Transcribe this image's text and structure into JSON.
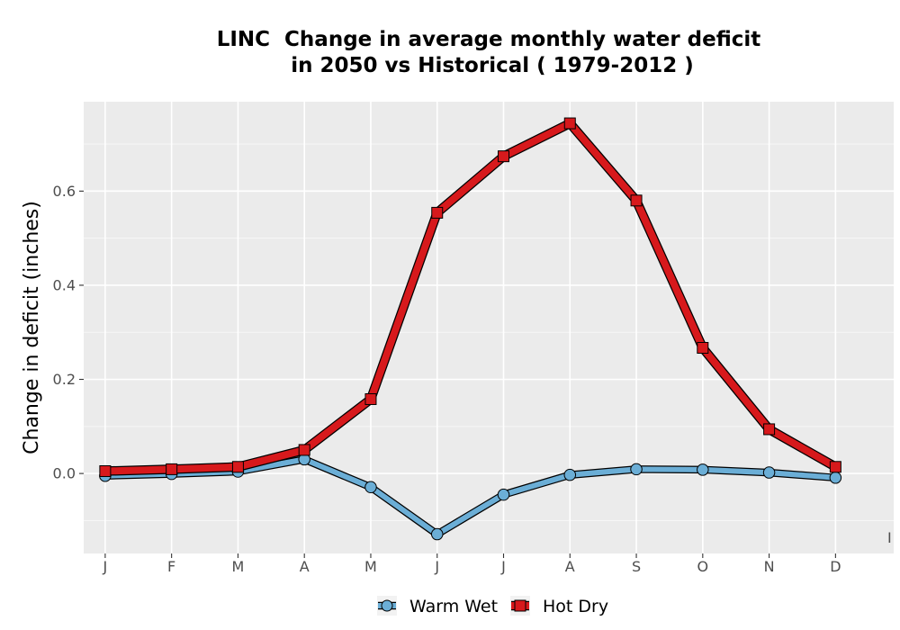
{
  "chart_data": {
    "type": "line",
    "title": "LINC  Change in average monthly water deficit\n in 2050 vs Historical ( 1979-2012 )",
    "xlabel": "",
    "ylabel": "Change in deficit (inches)",
    "categories": [
      "J",
      "F",
      "M",
      "A",
      "M",
      "J",
      "J",
      "A",
      "S",
      "O",
      "N",
      "D"
    ],
    "yticks": [
      0.0,
      0.2,
      0.4,
      0.6
    ],
    "ytick_labels": [
      "0.0",
      "0.2",
      "0.4",
      "0.6"
    ],
    "ylim": [
      -0.17,
      0.79
    ],
    "grid": true,
    "legend_position": "bottom",
    "stray_label": "I",
    "series": [
      {
        "name": "Warm Wet",
        "color": "#6BAED6",
        "marker": "circle",
        "values": [
          -0.005,
          -0.001,
          0.004,
          0.03,
          -0.029,
          -0.129,
          -0.045,
          -0.003,
          0.009,
          0.008,
          0.002,
          -0.009
        ]
      },
      {
        "name": "Hot Dry",
        "color": "#D7191C",
        "marker": "square",
        "values": [
          0.005,
          0.009,
          0.014,
          0.05,
          0.158,
          0.554,
          0.674,
          0.744,
          0.58,
          0.267,
          0.094,
          0.014
        ]
      }
    ]
  }
}
